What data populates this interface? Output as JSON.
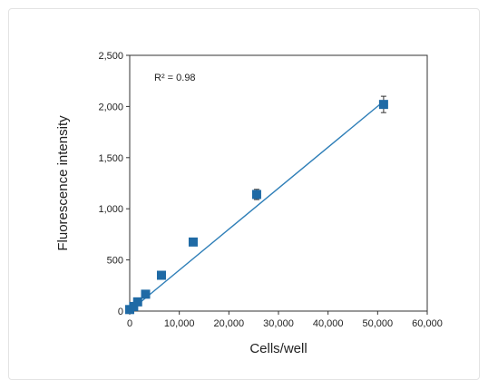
{
  "chart_data": {
    "type": "scatter",
    "title": "",
    "xlabel": "Cells/well",
    "ylabel": "Fluorescence intensity",
    "xlim": [
      0,
      60000
    ],
    "ylim": [
      0,
      2500
    ],
    "x_ticks": [
      0,
      10000,
      20000,
      30000,
      40000,
      50000,
      60000
    ],
    "x_tick_labels": [
      "0",
      "10,000",
      "20,000",
      "30,000",
      "40,000",
      "50,000",
      "60,000"
    ],
    "y_ticks": [
      0,
      500,
      1000,
      1500,
      2000,
      2500
    ],
    "y_tick_labels": [
      "0",
      "500",
      "1,000",
      "1,500",
      "2,000",
      "2,500"
    ],
    "grid": false,
    "legend": "none",
    "annotation": "R² = 0.98",
    "marker_color": "#1f6aa5",
    "line_color": "#2f7fb8",
    "series": [
      {
        "points": [
          {
            "x": 0,
            "y": 15,
            "err": 10
          },
          {
            "x": 800,
            "y": 45,
            "err": 10
          },
          {
            "x": 1600,
            "y": 90,
            "err": 10
          },
          {
            "x": 3200,
            "y": 165,
            "err": 12
          },
          {
            "x": 6400,
            "y": 350,
            "err": 15
          },
          {
            "x": 12800,
            "y": 675,
            "err": 15
          },
          {
            "x": 25600,
            "y": 1140,
            "err": 50
          },
          {
            "x": 51200,
            "y": 2020,
            "err": 80
          }
        ]
      }
    ],
    "fit_line": {
      "x": [
        0,
        51200
      ],
      "y": [
        0,
        2050
      ]
    }
  }
}
